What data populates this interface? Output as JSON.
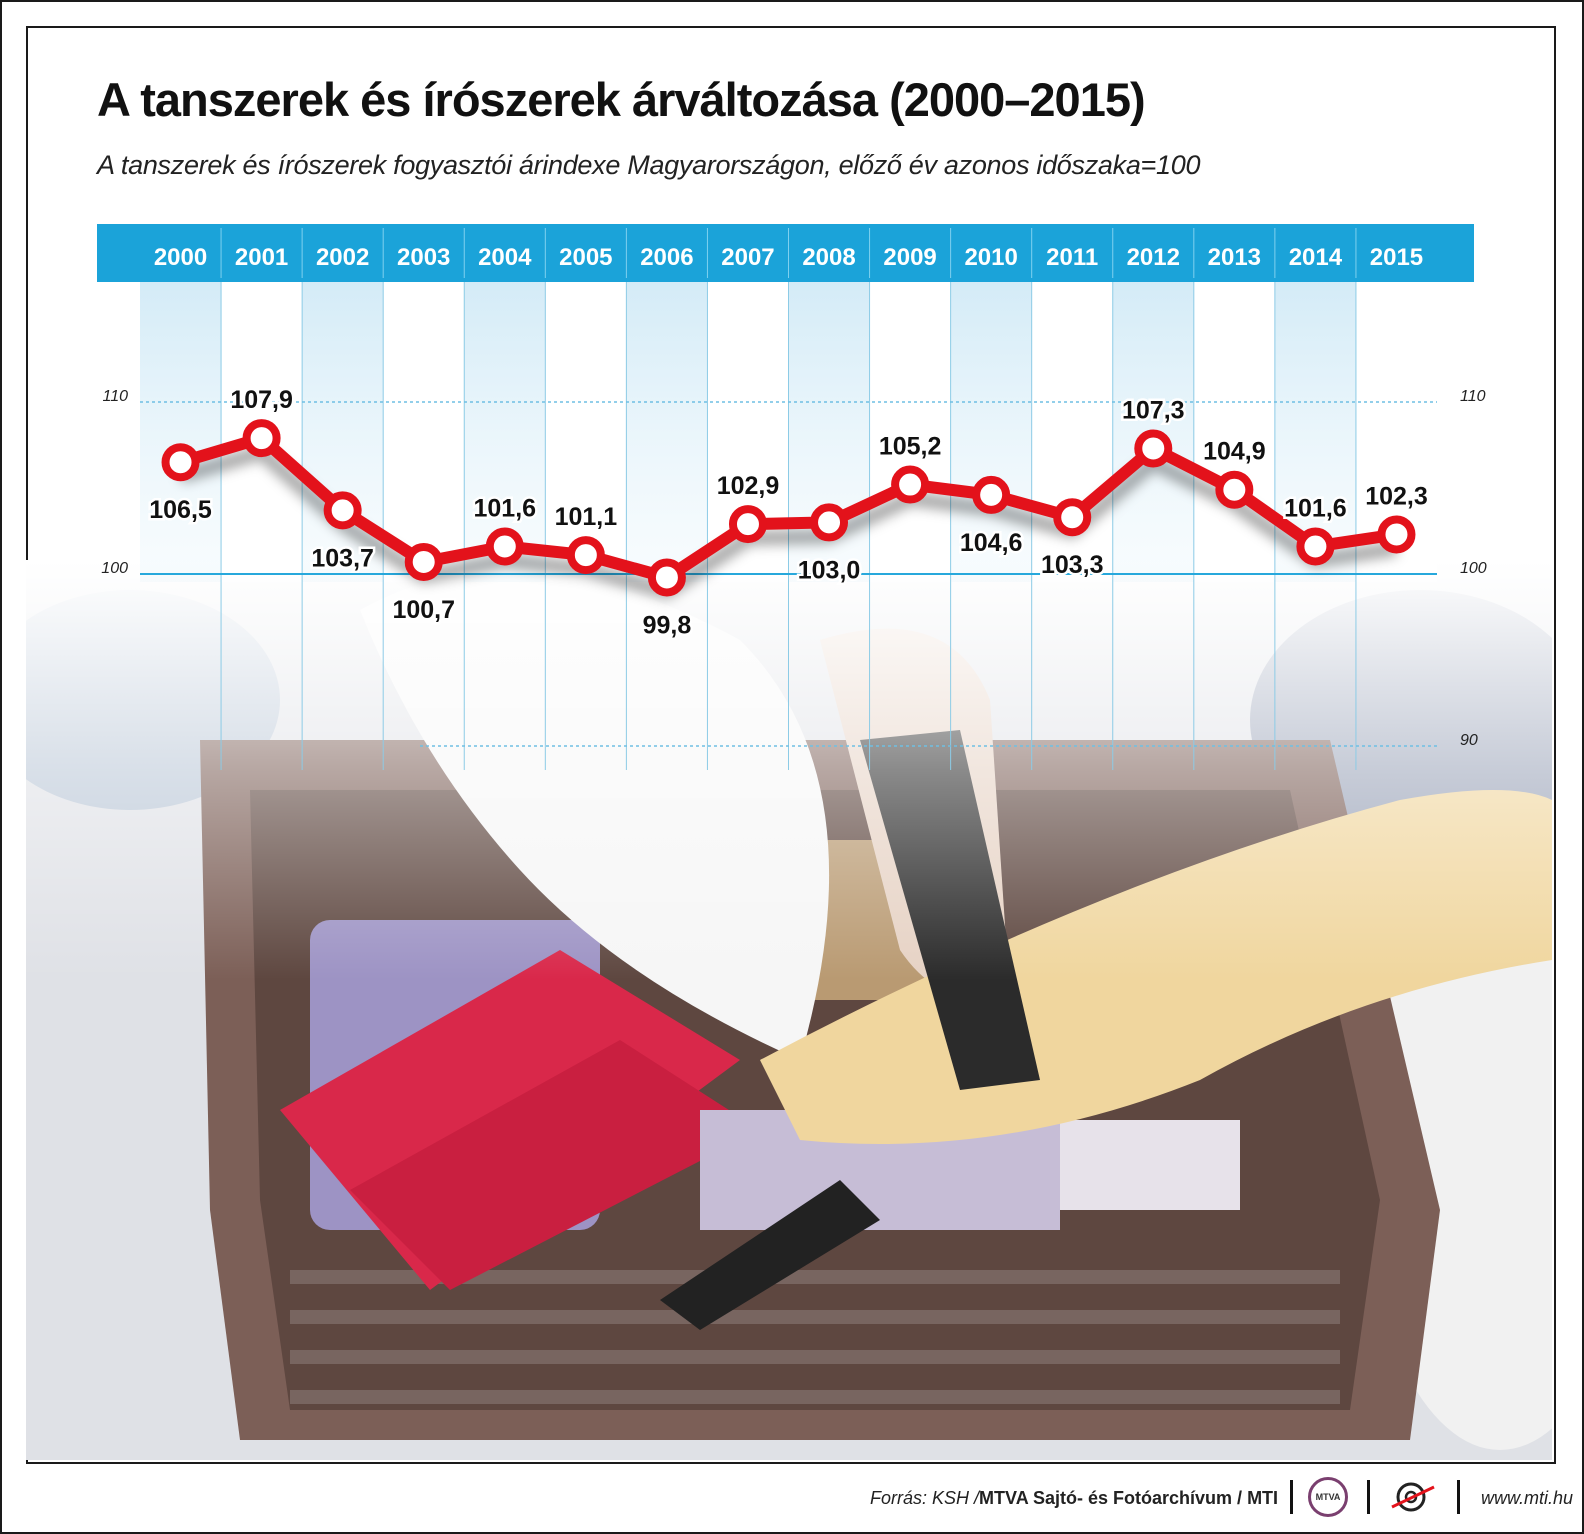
{
  "title": "A tanszerek és írószerek árváltozása (2000–2015)",
  "subtitle": "A tanszerek és írószerek fogyasztói árindexe Magyarországon, előző év azonos időszaka=100",
  "chart_data": {
    "type": "line",
    "categories": [
      "2000",
      "2001",
      "2002",
      "2003",
      "2004",
      "2005",
      "2006",
      "2007",
      "2008",
      "2009",
      "2010",
      "2011",
      "2012",
      "2013",
      "2014",
      "2015"
    ],
    "series": [
      {
        "values": [
          106.5,
          107.9,
          103.7,
          100.7,
          101.6,
          101.1,
          99.8,
          102.9,
          103.0,
          105.2,
          104.6,
          103.3,
          107.3,
          104.9,
          101.6,
          102.3
        ]
      }
    ],
    "data_labels": [
      "106,5",
      "107,9",
      "103,7",
      "100,7",
      "101,6",
      "101,1",
      "99,8",
      "102,9",
      "103,0",
      "105,2",
      "104,6",
      "103,3",
      "107,3",
      "104,9",
      "101,6",
      "102,3"
    ],
    "label_positions": [
      "below",
      "above",
      "below",
      "below",
      "above",
      "above",
      "below",
      "above",
      "below",
      "above",
      "below",
      "below",
      "above",
      "above",
      "above",
      "above"
    ],
    "yticks": [
      110,
      100,
      90
    ],
    "ytick_labels": [
      "110",
      "100",
      "90"
    ],
    "ylim": [
      90,
      110
    ],
    "grid": true,
    "line_color": "#e3121b",
    "header_color": "#1ba3d9"
  },
  "footer": {
    "source_prefix": "Forrás: KSH / ",
    "source_main": "MTVA Sajtó- és Fotóarchívum / MTI",
    "logo_text": "MTVA",
    "url": "www.mti.hu"
  }
}
